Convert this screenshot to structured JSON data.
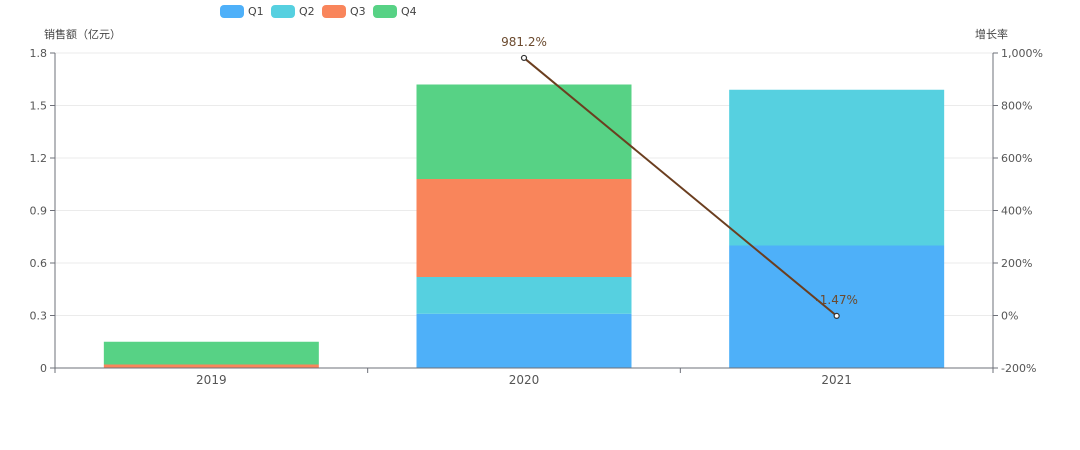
{
  "chart_data": {
    "type": "bar",
    "stacked": true,
    "categories": [
      "2019",
      "2020",
      "2021"
    ],
    "series": [
      {
        "name": "Q1",
        "color": "#4EB0F9",
        "values": [
          0.0,
          0.31,
          0.7
        ]
      },
      {
        "name": "Q2",
        "color": "#56D0E0",
        "values": [
          0.0,
          0.21,
          0.89
        ]
      },
      {
        "name": "Q3",
        "color": "#F9855B",
        "values": [
          0.02,
          0.56,
          0.0
        ]
      },
      {
        "name": "Q4",
        "color": "#57D285",
        "values": [
          0.13,
          0.54,
          0.0
        ]
      }
    ],
    "line": {
      "name": "增长率",
      "color": "#6B3E1F",
      "values": [
        null,
        981.2,
        -1.47
      ],
      "labels": [
        "",
        "981.2%",
        "-1.47%"
      ]
    },
    "ylabel": "销售额（亿元）",
    "y2label": "增长率",
    "ylim": [
      0,
      1.8
    ],
    "yticks": [
      "0",
      "0.3",
      "0.6",
      "0.9",
      "1.2",
      "1.5",
      "1.8"
    ],
    "y2lim": [
      -200,
      1000
    ],
    "y2ticks": [
      "-200%",
      "0%",
      "200%",
      "400%",
      "600%",
      "800%",
      "1,000%"
    ],
    "grid": true,
    "legend": "top-left"
  }
}
